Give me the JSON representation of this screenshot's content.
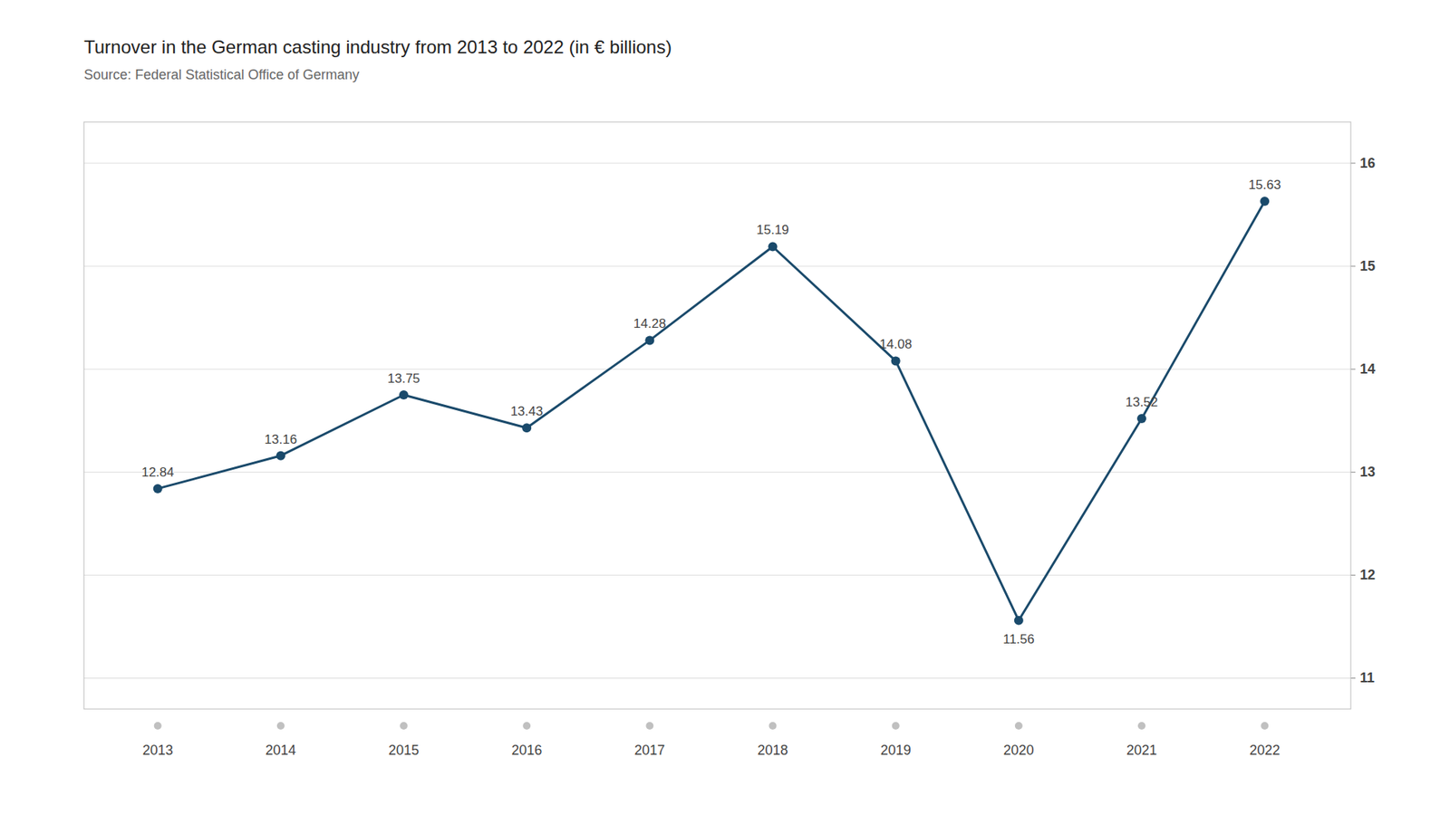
{
  "chart_data": {
    "type": "line",
    "title": "Turnover in the German casting industry from 2013 to 2022 (in € billions)",
    "subtitle": "Source: Federal Statistical Office of Germany",
    "x": [
      2013,
      2014,
      2015,
      2016,
      2017,
      2018,
      2019,
      2020,
      2021,
      2022
    ],
    "values": [
      12.84,
      13.16,
      13.75,
      13.43,
      14.28,
      15.19,
      14.08,
      11.56,
      13.52,
      15.63
    ],
    "color": "#1a4a6b",
    "marker": "circle",
    "xlim": [
      2012.4,
      2022.7
    ],
    "xticks": [
      2013,
      2014,
      2015,
      2016,
      2017,
      2018,
      2019,
      2020,
      2021,
      2022
    ],
    "ylim": [
      10.7,
      16.4
    ],
    "yticks": [
      11,
      12,
      13,
      14,
      15,
      16
    ],
    "grid": true,
    "data_labels": true
  }
}
